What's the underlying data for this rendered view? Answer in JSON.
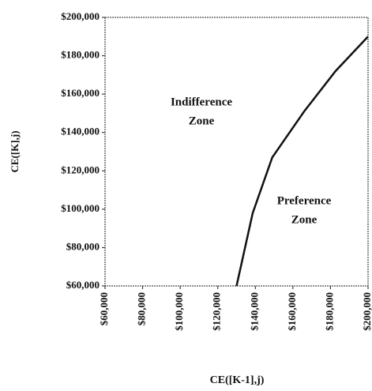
{
  "chart_data": {
    "type": "line",
    "x_label": "CE([K-1],j)",
    "y_label": "CE([K],j)",
    "annotations": [
      [
        "Indifference",
        "Zone"
      ],
      [
        "Preference",
        "Zone"
      ]
    ],
    "x": [
      130000,
      138600,
      149000,
      166000,
      182700,
      200000
    ],
    "series": [
      {
        "color": "#111111",
        "values": [
          60000,
          98000,
          127000,
          151000,
          172000,
          190000
        ]
      }
    ],
    "xlim": [
      60000,
      200000
    ],
    "ylim": [
      60000,
      200000
    ],
    "xticks": [
      {
        "value": 60000,
        "label": "$60,000"
      },
      {
        "value": 80000,
        "label": "$80,000"
      },
      {
        "value": 100000,
        "label": "$100,000"
      },
      {
        "value": 120000,
        "label": "$120,000"
      },
      {
        "value": 140000,
        "label": "$140,000"
      },
      {
        "value": 160000,
        "label": "$160,000"
      },
      {
        "value": 180000,
        "label": "$180,000"
      },
      {
        "value": 200000,
        "label": "$200,000"
      }
    ],
    "yticks": [
      {
        "value": 60000,
        "label": "$60,000"
      },
      {
        "value": 80000,
        "label": "$80,000"
      },
      {
        "value": 100000,
        "label": "$100,000"
      },
      {
        "value": 120000,
        "label": "$120,000"
      },
      {
        "value": 140000,
        "label": "$140,000"
      },
      {
        "value": 160000,
        "label": "$160,000"
      },
      {
        "value": 180000,
        "label": "$180,000"
      },
      {
        "value": 200000,
        "label": "$200,000"
      }
    ],
    "grid": false
  }
}
